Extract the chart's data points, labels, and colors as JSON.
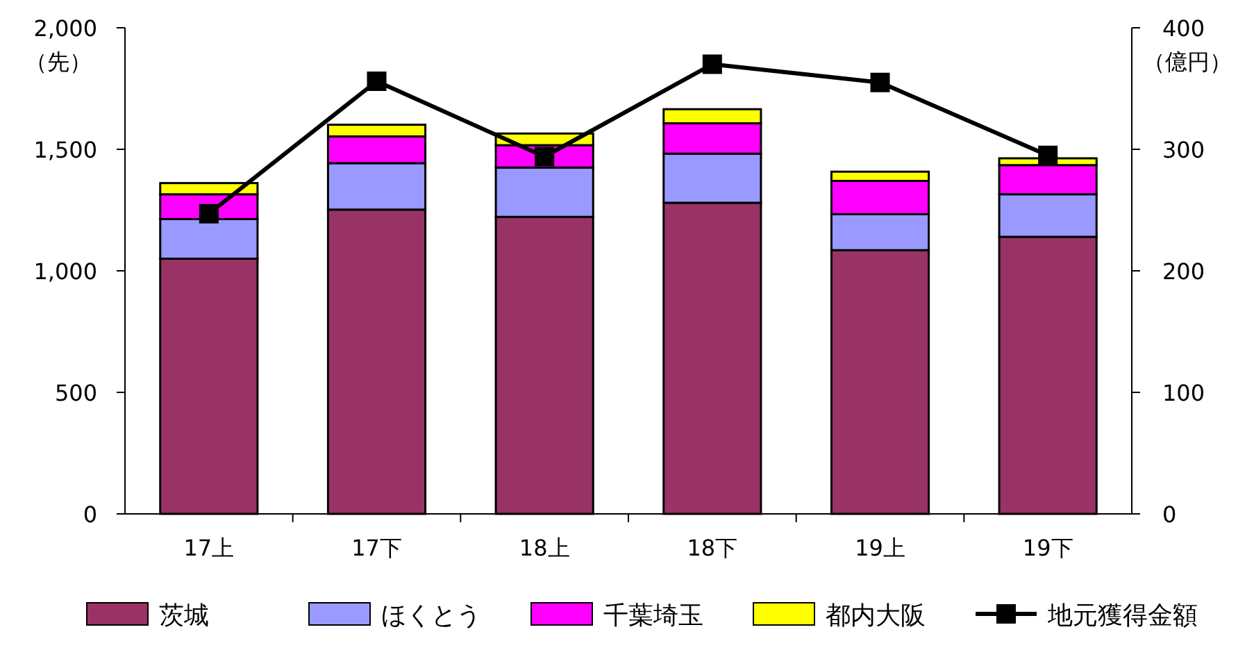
{
  "chart_data": {
    "type": "bar",
    "stacked": true,
    "ylabel": "（先）",
    "y2label": "（億円）",
    "categories": [
      "17上",
      "17下",
      "18上",
      "18下",
      "19上",
      "19下"
    ],
    "series": [
      {
        "name": "茨城",
        "color": "#993366",
        "values": [
          1050,
          1252,
          1222,
          1280,
          1085,
          1140
        ]
      },
      {
        "name": "ほくとう",
        "color": "#9999ff",
        "values": [
          163,
          191,
          203,
          202,
          148,
          175
        ]
      },
      {
        "name": "千葉埼玉",
        "color": "#ff00ff",
        "values": [
          102,
          110,
          92,
          125,
          137,
          120
        ]
      },
      {
        "name": "都内大阪",
        "color": "#ffff00",
        "values": [
          46,
          48,
          48,
          58,
          38,
          28
        ]
      },
      {
        "name": "地元獲得金額",
        "type": "line",
        "axis": "y2",
        "color": "#000000",
        "marker": "square",
        "line_style": "solid",
        "values": [
          247,
          356,
          294,
          370,
          355,
          295
        ]
      }
    ],
    "ylim": [
      0,
      2000
    ],
    "yticks": [
      0,
      {
        "value": 500,
        "label": "500"
      },
      {
        "value": 1000,
        "label": "1,000"
      },
      {
        "value": 1500,
        "label": "1,500"
      },
      {
        "value": 2000,
        "label": "2,000"
      }
    ],
    "y2lim": [
      0,
      400
    ],
    "y2ticks": [
      0,
      100,
      200,
      300,
      400
    ],
    "grid": false,
    "legend": "bottom"
  }
}
